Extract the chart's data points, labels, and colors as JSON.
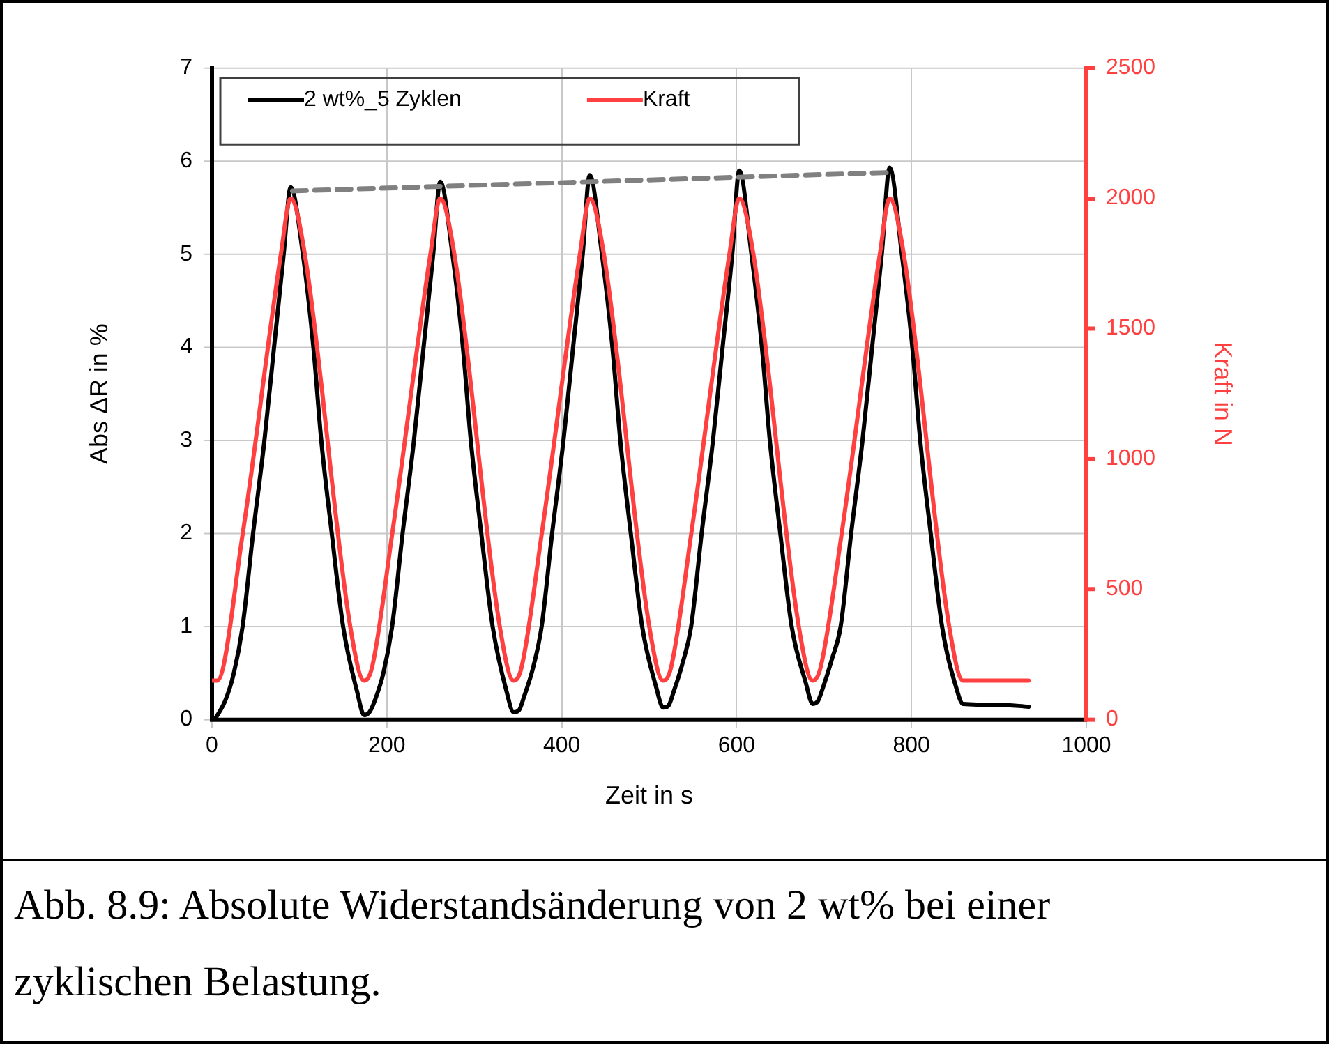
{
  "chart_data": {
    "type": "line",
    "xlabel": "Zeit in s",
    "ylabel": "Abs ΔR in %",
    "y2label": "Kraft in N",
    "annotations": [
      "Abb. 8.9: Absolute Widerstandsänderung von 2 wt% bei einer zyklischen Belastung."
    ],
    "xlim": [
      0,
      1000
    ],
    "xticks": [
      0,
      200,
      400,
      600,
      800,
      1000
    ],
    "ylim": [
      0,
      7
    ],
    "yticks": [
      0,
      1,
      2,
      3,
      4,
      5,
      6,
      7
    ],
    "y2lim": [
      0,
      2500
    ],
    "y2ticks": [
      0,
      500,
      1000,
      1500,
      2000,
      2500
    ],
    "grid": true,
    "legend": "top left",
    "marker": "none",
    "line_style": "solid",
    "series": [
      {
        "name": "2 wt%_5 Zyklen",
        "color": "#000000",
        "x": [
          3,
          15,
          25,
          35,
          47,
          60,
          71,
          82,
          90,
          104,
          116,
          125,
          137,
          150,
          166,
          174,
          180,
          186,
          196,
          206,
          218,
          231,
          242,
          253,
          261,
          275,
          287,
          296,
          308,
          321,
          337,
          345,
          351,
          357,
          367,
          377,
          389,
          402,
          413,
          424,
          432,
          446,
          458,
          467,
          479,
          492,
          508,
          516,
          522,
          528,
          538,
          548,
          560,
          573,
          584,
          595,
          603,
          617,
          629,
          638,
          650,
          663,
          679,
          687,
          693,
          699,
          709,
          719,
          731,
          744,
          755,
          766,
          775,
          789,
          801,
          810,
          822,
          835,
          851,
          859,
          900,
          934
        ],
        "values": [
          0,
          0.2,
          0.5,
          1,
          2,
          3,
          4,
          5,
          5.72,
          5,
          4,
          3,
          2,
          1,
          0.3,
          0.05,
          0.08,
          0.2,
          0.5,
          1,
          2,
          3,
          4,
          5,
          5.78,
          5,
          4,
          3,
          2,
          1,
          0.3,
          0.08,
          0.1,
          0.25,
          0.55,
          1,
          2,
          3,
          4,
          5,
          5.85,
          5,
          4,
          3,
          2,
          1,
          0.35,
          0.13,
          0.15,
          0.3,
          0.6,
          1,
          2,
          3,
          4,
          5,
          5.9,
          5,
          4,
          3,
          2,
          1,
          0.4,
          0.17,
          0.2,
          0.35,
          0.65,
          1,
          2,
          3,
          4,
          5,
          5.93,
          5,
          4,
          3,
          2,
          1,
          0.35,
          0.17,
          0.16,
          0.14
        ]
      },
      {
        "name": "Kraft",
        "color": "#ff4040",
        "axis": "y2",
        "x": [
          0,
          6,
          35,
          79,
          90,
          106,
          158,
          174,
          183,
          206,
          250,
          261,
          277,
          329,
          345,
          354,
          377,
          421,
          432,
          448,
          500,
          516,
          525,
          548,
          592,
          603,
          619,
          671,
          687,
          696,
          720,
          764,
          775,
          791,
          843,
          859,
          934
        ],
        "values": [
          150,
          150,
          710,
          1790,
          2000,
          1790,
          360,
          150,
          200,
          710,
          1790,
          2000,
          1790,
          360,
          150,
          200,
          710,
          1790,
          2000,
          1790,
          360,
          150,
          200,
          710,
          1790,
          2000,
          1790,
          360,
          150,
          200,
          710,
          1790,
          2000,
          1790,
          360,
          150,
          150
        ]
      },
      {
        "type": "line",
        "color": "#808080",
        "line_style": "dashed",
        "x": [
          92,
          780
        ],
        "values": [
          5.68,
          5.88
        ]
      }
    ]
  }
}
